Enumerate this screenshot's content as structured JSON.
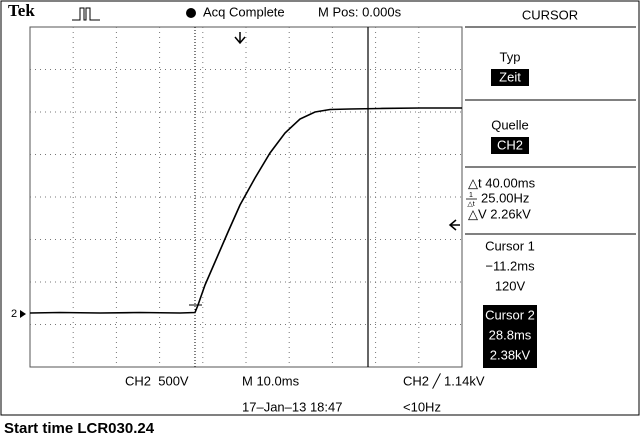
{
  "header": {
    "brand": "Tek",
    "status": "Acq Complete",
    "position": "M Pos: 0.000s"
  },
  "menu": {
    "title": "CURSOR",
    "type_label": "Typ",
    "type_value": "Zeit",
    "source_label": "Quelle",
    "source_value": "CH2",
    "delta_t": "△t 40.00ms",
    "inverse_num": "1",
    "inverse_den": "△t",
    "inverse_value": "25.00Hz",
    "delta_v": "△V 2.26kV",
    "cursor1": {
      "title": "Cursor 1",
      "time": "−11.2ms",
      "voltage": "120V"
    },
    "cursor2": {
      "title": "Cursor 2",
      "time": "28.8ms",
      "voltage": "2.38kV"
    }
  },
  "channel_marker": "2",
  "footer": {
    "channel_scale": "CH2  500V",
    "timebase": "M 10.0ms",
    "trigger": "CH2 ╱ 1.14kV",
    "date": "17–Jan–13 18:47",
    "frequency": "<10Hz"
  },
  "caption": "Start time LCR030.24"
}
